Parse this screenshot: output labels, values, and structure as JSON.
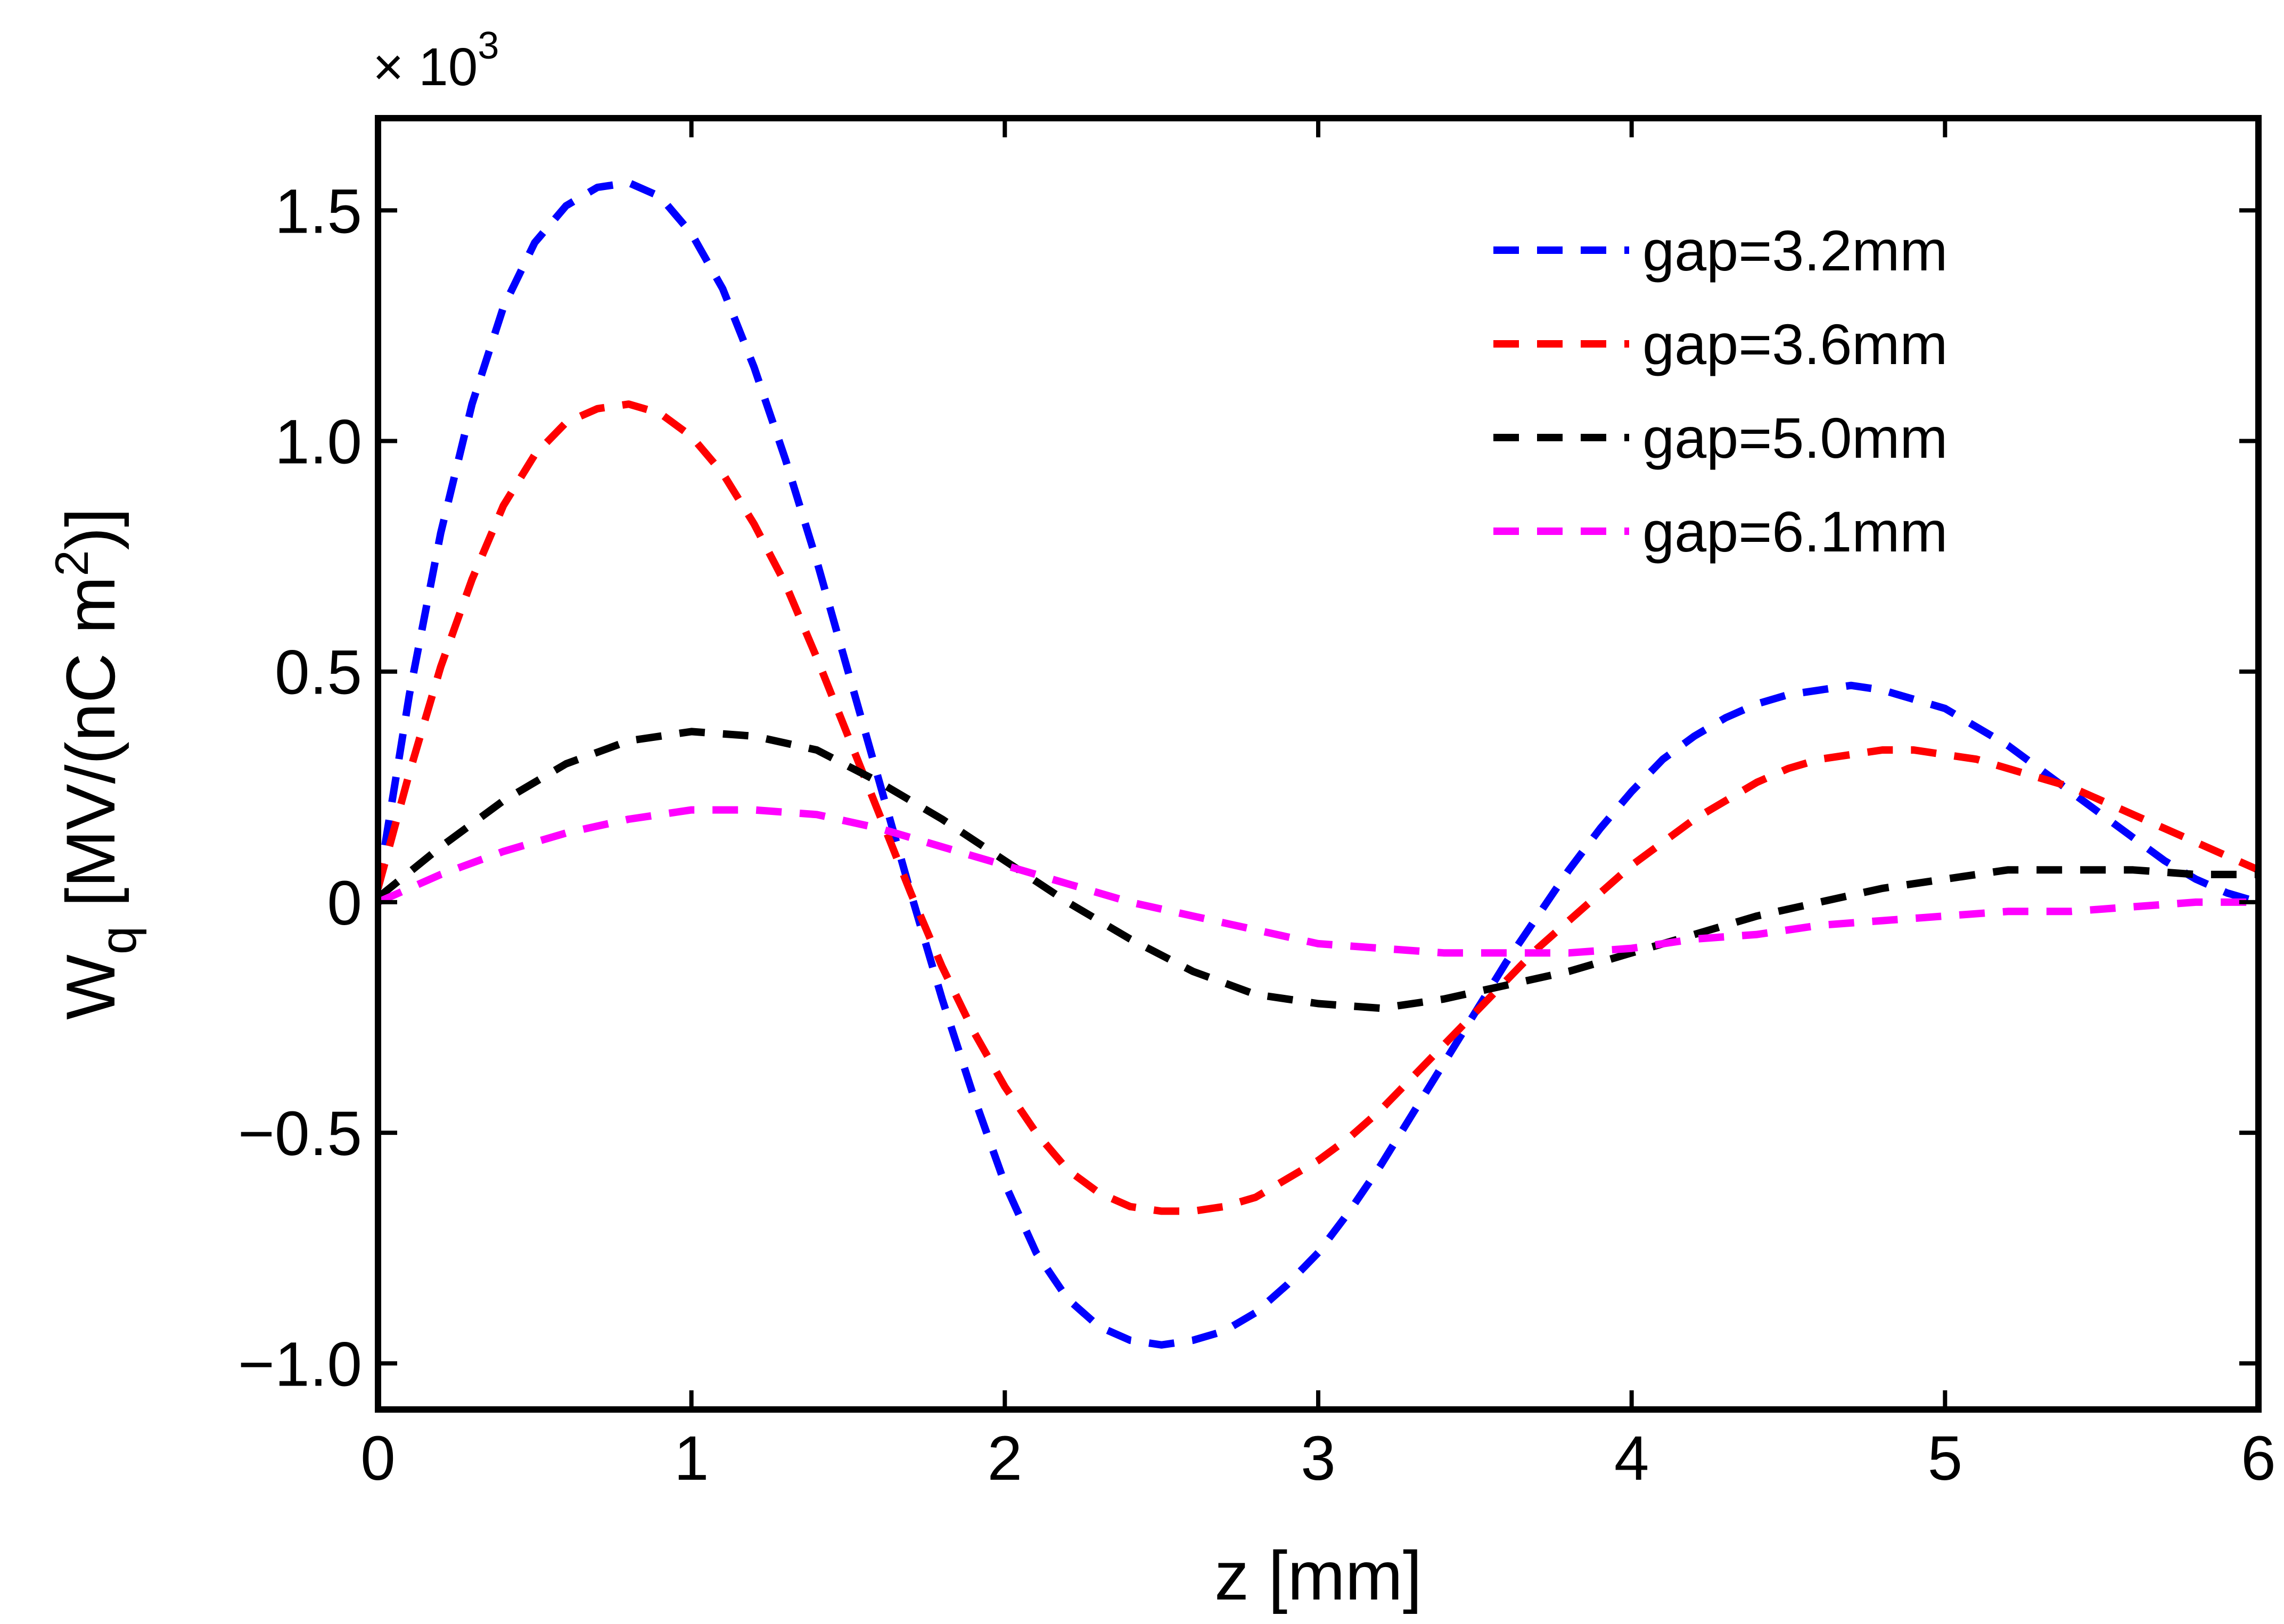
{
  "chart_data": {
    "type": "line",
    "title": "",
    "xlabel": "z [mm]",
    "ylabel": {
      "main": "W",
      "sub": "q",
      "unit_pre": " [MV/(nC m",
      "unit_sup": "2",
      "unit_post": ")]"
    },
    "y_multiplier": {
      "prefix": "× 10",
      "exponent": "3"
    },
    "xlim": [
      0,
      6
    ],
    "ylim": [
      -1.1,
      1.7
    ],
    "xticks": [
      0,
      1,
      2,
      3,
      4,
      5,
      6
    ],
    "xtick_labels": [
      "0",
      "1",
      "2",
      "3",
      "4",
      "5",
      "6"
    ],
    "yticks": [
      -1.0,
      -0.5,
      0,
      0.5,
      1.0,
      1.5
    ],
    "ytick_labels": [
      "−1.0",
      "−0.5",
      "0",
      "0.5",
      "1.0",
      "1.5"
    ],
    "grid": false,
    "legend_position": "top-right",
    "series": [
      {
        "name": "gap=3.2mm",
        "color": "#0000ff",
        "style": "dashed",
        "x": [
          0,
          0.1,
          0.2,
          0.3,
          0.4,
          0.5,
          0.6,
          0.7,
          0.8,
          0.9,
          1.0,
          1.1,
          1.2,
          1.3,
          1.4,
          1.5,
          1.6,
          1.7,
          1.8,
          1.9,
          2.0,
          2.1,
          2.2,
          2.3,
          2.4,
          2.5,
          2.6,
          2.7,
          2.8,
          2.9,
          3.0,
          3.1,
          3.2,
          3.3,
          3.4,
          3.5,
          3.6,
          3.7,
          3.8,
          3.9,
          4.0,
          4.1,
          4.2,
          4.3,
          4.4,
          4.5,
          4.6,
          4.7,
          4.8,
          4.9,
          5.0,
          5.1,
          5.2,
          5.3,
          5.4,
          5.5,
          5.6,
          5.7,
          5.8,
          5.9,
          6.0
        ],
        "y": [
          0.03,
          0.45,
          0.8,
          1.08,
          1.29,
          1.43,
          1.51,
          1.55,
          1.56,
          1.53,
          1.45,
          1.33,
          1.16,
          0.96,
          0.74,
          0.5,
          0.26,
          0.02,
          -0.21,
          -0.42,
          -0.61,
          -0.76,
          -0.86,
          -0.92,
          -0.95,
          -0.96,
          -0.95,
          -0.93,
          -0.89,
          -0.83,
          -0.76,
          -0.67,
          -0.57,
          -0.46,
          -0.35,
          -0.24,
          -0.13,
          -0.03,
          0.07,
          0.16,
          0.24,
          0.31,
          0.36,
          0.4,
          0.43,
          0.45,
          0.46,
          0.47,
          0.46,
          0.44,
          0.42,
          0.38,
          0.34,
          0.29,
          0.24,
          0.19,
          0.14,
          0.09,
          0.05,
          0.02,
          0.0
        ]
      },
      {
        "name": "gap=3.6mm",
        "color": "#ff0000",
        "style": "dashed",
        "x": [
          0,
          0.1,
          0.2,
          0.3,
          0.4,
          0.5,
          0.6,
          0.7,
          0.8,
          0.9,
          1.0,
          1.1,
          1.2,
          1.3,
          1.4,
          1.5,
          1.6,
          1.7,
          1.8,
          1.9,
          2.0,
          2.1,
          2.2,
          2.3,
          2.4,
          2.5,
          2.6,
          2.7,
          2.8,
          2.9,
          3.0,
          3.1,
          3.2,
          3.3,
          3.4,
          3.5,
          3.6,
          3.7,
          3.8,
          3.9,
          4.0,
          4.1,
          4.2,
          4.3,
          4.4,
          4.5,
          4.6,
          4.7,
          4.8,
          4.9,
          5.0,
          5.1,
          5.2,
          5.3,
          5.4,
          5.5,
          5.6,
          5.7,
          5.8,
          5.9,
          6.0
        ],
        "y": [
          0.03,
          0.28,
          0.51,
          0.7,
          0.86,
          0.97,
          1.04,
          1.07,
          1.08,
          1.06,
          1.01,
          0.93,
          0.82,
          0.69,
          0.53,
          0.36,
          0.19,
          0.02,
          -0.14,
          -0.28,
          -0.4,
          -0.5,
          -0.58,
          -0.63,
          -0.66,
          -0.67,
          -0.67,
          -0.66,
          -0.64,
          -0.6,
          -0.56,
          -0.51,
          -0.45,
          -0.38,
          -0.31,
          -0.24,
          -0.17,
          -0.1,
          -0.04,
          0.02,
          0.08,
          0.13,
          0.18,
          0.22,
          0.26,
          0.29,
          0.31,
          0.32,
          0.33,
          0.33,
          0.32,
          0.31,
          0.29,
          0.27,
          0.25,
          0.22,
          0.19,
          0.16,
          0.13,
          0.1,
          0.07
        ]
      },
      {
        "name": "gap=5.0mm",
        "color": "#000000",
        "style": "dashed",
        "x": [
          0,
          0.2,
          0.4,
          0.6,
          0.8,
          1.0,
          1.2,
          1.4,
          1.6,
          1.8,
          2.0,
          2.2,
          2.4,
          2.6,
          2.8,
          3.0,
          3.2,
          3.4,
          3.6,
          3.8,
          4.0,
          4.2,
          4.4,
          4.6,
          4.8,
          5.0,
          5.2,
          5.4,
          5.6,
          5.8,
          6.0
        ],
        "y": [
          0.01,
          0.12,
          0.22,
          0.3,
          0.35,
          0.37,
          0.36,
          0.33,
          0.26,
          0.18,
          0.09,
          0.0,
          -0.08,
          -0.15,
          -0.2,
          -0.22,
          -0.23,
          -0.21,
          -0.18,
          -0.15,
          -0.11,
          -0.07,
          -0.03,
          0.0,
          0.03,
          0.05,
          0.07,
          0.07,
          0.07,
          0.06,
          0.06
        ]
      },
      {
        "name": "gap=6.1mm",
        "color": "#ff00ff",
        "style": "dashed",
        "x": [
          0,
          0.2,
          0.4,
          0.6,
          0.8,
          1.0,
          1.2,
          1.4,
          1.6,
          1.8,
          2.0,
          2.2,
          2.4,
          2.6,
          2.8,
          3.0,
          3.2,
          3.4,
          3.6,
          3.8,
          4.0,
          4.2,
          4.4,
          4.6,
          4.8,
          5.0,
          5.2,
          5.4,
          5.6,
          5.8,
          6.0
        ],
        "y": [
          0.0,
          0.06,
          0.11,
          0.15,
          0.18,
          0.2,
          0.2,
          0.19,
          0.16,
          0.12,
          0.08,
          0.04,
          0.0,
          -0.03,
          -0.06,
          -0.09,
          -0.1,
          -0.11,
          -0.11,
          -0.11,
          -0.1,
          -0.08,
          -0.07,
          -0.05,
          -0.04,
          -0.03,
          -0.02,
          -0.02,
          -0.01,
          0.0,
          0.0
        ]
      }
    ]
  }
}
